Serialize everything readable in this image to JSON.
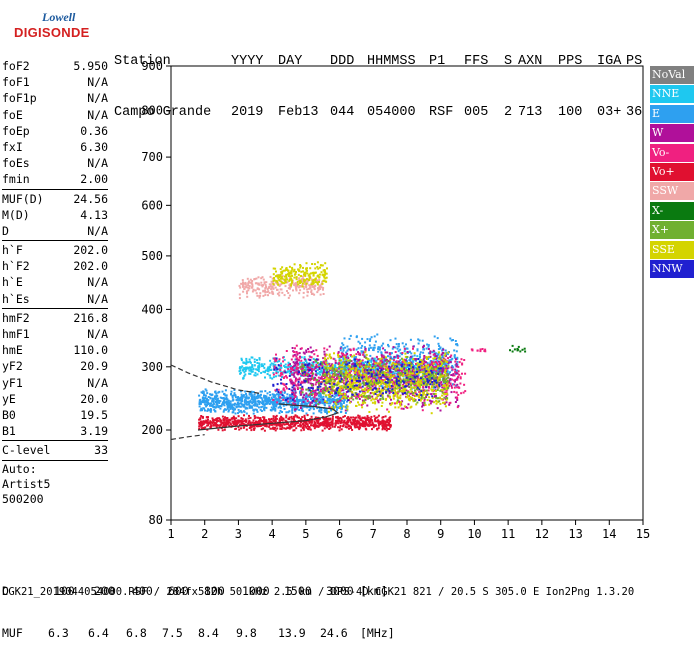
{
  "logo": {
    "line1": "Lowell",
    "line2": "DIGISONDE"
  },
  "header": {
    "labels": [
      "Station",
      "YYYY",
      "DAY",
      "DDD",
      "HHMMSS",
      "P1",
      "FFS",
      "S",
      "AXN",
      "PPS",
      "IGA",
      "PS"
    ],
    "values": [
      "Campo Grande",
      "2019",
      "Feb13",
      "044",
      "054000",
      "RSF",
      "005",
      "2",
      "713",
      "100",
      "03+",
      "36"
    ]
  },
  "params": [
    {
      "k": "foF2",
      "v": "5.950"
    },
    {
      "k": "foF1",
      "v": "N/A"
    },
    {
      "k": "foF1p",
      "v": "N/A"
    },
    {
      "k": "foE",
      "v": "N/A"
    },
    {
      "k": "foEp",
      "v": "0.36"
    },
    {
      "k": "fxI",
      "v": "6.30"
    },
    {
      "k": "foEs",
      "v": "N/A"
    },
    {
      "k": "fmin",
      "v": "2.00"
    },
    {
      "sep": true
    },
    {
      "k": "MUF(D)",
      "v": "24.56"
    },
    {
      "k": "M(D)",
      "v": "4.13"
    },
    {
      "k": "D",
      "v": "N/A"
    },
    {
      "sep": true
    },
    {
      "k": "h`F",
      "v": "202.0"
    },
    {
      "k": "h`F2",
      "v": "202.0"
    },
    {
      "k": "h`E",
      "v": "N/A"
    },
    {
      "k": "h`Es",
      "v": "N/A"
    },
    {
      "sep": true
    },
    {
      "k": "hmF2",
      "v": "216.8"
    },
    {
      "k": "hmF1",
      "v": "N/A"
    },
    {
      "k": "hmE",
      "v": "110.0"
    },
    {
      "k": "yF2",
      "v": "20.9"
    },
    {
      "k": "yF1",
      "v": "N/A"
    },
    {
      "k": "yE",
      "v": "20.0"
    },
    {
      "k": "B0",
      "v": "19.5"
    },
    {
      "k": "B1",
      "v": "3.19"
    },
    {
      "sep": true
    },
    {
      "k": "C-level",
      "v": "33"
    },
    {
      "sep": true
    },
    {
      "t": "Auto:"
    },
    {
      "t": "Artist5"
    },
    {
      "t": "500200"
    }
  ],
  "legend": [
    {
      "label": "NoVal",
      "color": "#808080"
    },
    {
      "label": "NNE",
      "color": "#1ec8f0"
    },
    {
      "label": "E",
      "color": "#2ea0f0"
    },
    {
      "label": "W",
      "color": "#b0109a"
    },
    {
      "label": "Vo-",
      "color": "#f02080"
    },
    {
      "label": "Vo+",
      "color": "#e01030"
    },
    {
      "label": "SSW",
      "color": "#f0a8a8"
    },
    {
      "label": "X-",
      "color": "#0a7a10"
    },
    {
      "label": "X+",
      "color": "#70b030"
    },
    {
      "label": "SSE",
      "color": "#d4d400"
    },
    {
      "label": "NNW",
      "color": "#2020d0"
    }
  ],
  "bottom": {
    "d_label": "D",
    "d_values": [
      "100",
      "200",
      "400",
      "600",
      "800",
      "1000",
      "1500",
      "3000"
    ],
    "d_unit": "[km]",
    "muf_label": "MUF",
    "muf_values": [
      "6.3",
      "6.4",
      "6.8",
      "7.5",
      "8.4",
      "9.8",
      "13.9",
      "24.6"
    ],
    "muf_unit": "[MHz]"
  },
  "footer": "CGK21_2019044054000.RSF / 284fx512h 50 kHz 2.5 km / DPS-4D CGK21 821 / 20.5 S 305.0 E Ion2Png 1.3.20",
  "chart_data": {
    "type": "scatter",
    "title": "",
    "xlabel": "",
    "ylabel": "",
    "xlim": [
      1,
      15
    ],
    "ylim": [
      80,
      900
    ],
    "x_ticks": [
      1,
      2,
      3,
      4,
      5,
      6,
      7,
      8,
      9,
      10,
      11,
      12,
      13,
      14,
      15
    ],
    "y_ticks": [
      80,
      200,
      300,
      400,
      500,
      600,
      700,
      800,
      900
    ],
    "y_scale": "power",
    "clusters": [
      {
        "name": "E",
        "x_range": [
          1.8,
          6.2
        ],
        "y_range": [
          225,
          265
        ],
        "count": 900
      },
      {
        "name": "NNE",
        "x_range": [
          3.0,
          9.2
        ],
        "y_range": [
          280,
          320
        ],
        "count": 700
      },
      {
        "name": "E",
        "x_range": [
          6.0,
          9.5
        ],
        "y_range": [
          260,
          360
        ],
        "count": 500
      },
      {
        "name": "Vo+",
        "x_range": [
          1.8,
          7.5
        ],
        "y_range": [
          200,
          225
        ],
        "count": 900
      },
      {
        "name": "W",
        "x_range": [
          4.5,
          9.5
        ],
        "y_range": [
          230,
          340
        ],
        "count": 800
      },
      {
        "name": "Vo-",
        "x_range": [
          4.0,
          9.7
        ],
        "y_range": [
          230,
          340
        ],
        "count": 500
      },
      {
        "name": "SSE",
        "x_range": [
          5.5,
          9.2
        ],
        "y_range": [
          225,
          330
        ],
        "count": 700
      },
      {
        "name": "X+",
        "x_range": [
          4.8,
          9.2
        ],
        "y_range": [
          240,
          320
        ],
        "count": 300
      },
      {
        "name": "NNW",
        "x_range": [
          4.0,
          9.0
        ],
        "y_range": [
          240,
          320
        ],
        "count": 200
      },
      {
        "name": "SSW",
        "x_range": [
          3.0,
          5.5
        ],
        "y_range": [
          420,
          470
        ],
        "count": 250
      },
      {
        "name": "SSE",
        "x_range": [
          4.0,
          5.6
        ],
        "y_range": [
          440,
          490
        ],
        "count": 200
      },
      {
        "name": "Vo-",
        "x_range": [
          9.8,
          10.3
        ],
        "y_range": [
          325,
          335
        ],
        "count": 12
      },
      {
        "name": "X-",
        "x_range": [
          11.0,
          11.5
        ],
        "y_range": [
          325,
          338
        ],
        "count": 12
      }
    ],
    "profile_solid": [
      [
        1.8,
        200
      ],
      [
        3.0,
        206
      ],
      [
        4.0,
        210
      ],
      [
        5.0,
        214
      ],
      [
        5.6,
        220
      ],
      [
        5.95,
        226
      ],
      [
        5.8,
        232
      ],
      [
        5.2,
        236
      ],
      [
        4.6,
        238
      ],
      [
        4.2,
        240
      ]
    ],
    "profile_dashed_upper": [
      [
        1.0,
        303
      ],
      [
        1.5,
        290
      ],
      [
        2.2,
        275
      ],
      [
        3.0,
        262
      ],
      [
        3.7,
        256
      ]
    ],
    "profile_dashed_lower": [
      [
        1.0,
        186
      ],
      [
        1.5,
        190
      ],
      [
        2.0,
        193
      ]
    ]
  }
}
